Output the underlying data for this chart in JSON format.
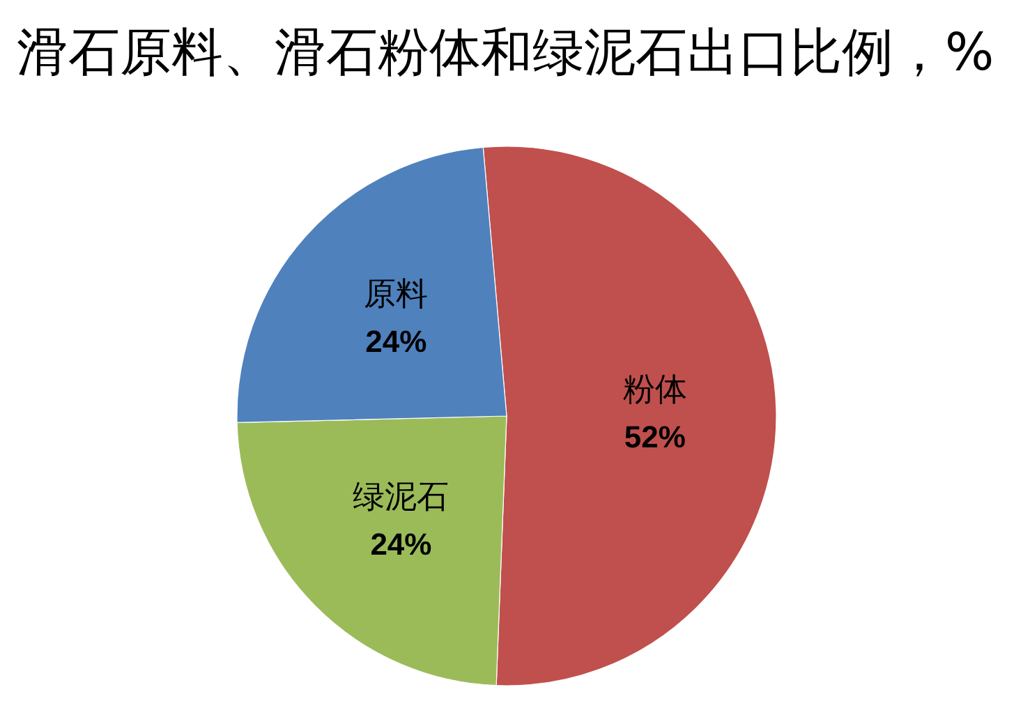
{
  "chart_data": {
    "type": "pie",
    "title": "滑石原料、滑石粉体和绿泥石出口比例，%",
    "categories": [
      "粉体",
      "绿泥石",
      "原料"
    ],
    "values": [
      52,
      24,
      24
    ],
    "colors": [
      "#c0504d",
      "#9bbb59",
      "#4f81bd"
    ],
    "value_labels": [
      "52%",
      "24%",
      "24%"
    ]
  }
}
